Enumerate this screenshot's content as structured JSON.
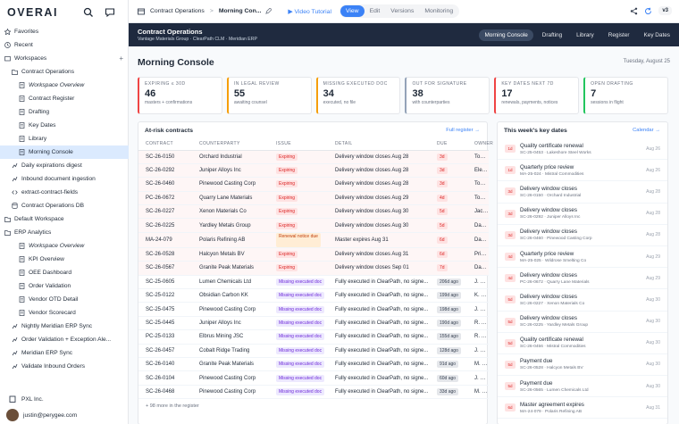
{
  "sidebar": {
    "logo": "OVERAI",
    "items": [
      {
        "label": "Favorites",
        "level": 0,
        "icon": "star-icon",
        "italic": false,
        "sel": false
      },
      {
        "label": "Recent",
        "level": 0,
        "icon": "clock-icon",
        "italic": false,
        "sel": false
      },
      {
        "label": "Workspaces",
        "level": 0,
        "icon": "workspace-icon",
        "italic": false,
        "sel": false,
        "plus": "+"
      },
      {
        "label": "Contract Operations",
        "level": 1,
        "icon": "folder-icon",
        "italic": false,
        "sel": false
      },
      {
        "label": "Workspace Overview",
        "level": 2,
        "icon": "doc-icon",
        "italic": true,
        "sel": false
      },
      {
        "label": "Contract Register",
        "level": 2,
        "icon": "doc-icon",
        "italic": false,
        "sel": false
      },
      {
        "label": "Drafting",
        "level": 2,
        "icon": "doc-icon",
        "italic": false,
        "sel": false
      },
      {
        "label": "Key Dates",
        "level": 2,
        "icon": "doc-icon",
        "italic": false,
        "sel": false
      },
      {
        "label": "Library",
        "level": 2,
        "icon": "doc-icon",
        "italic": false,
        "sel": false
      },
      {
        "label": "Morning Console",
        "level": 2,
        "icon": "doc-icon",
        "italic": false,
        "sel": true
      },
      {
        "label": "Daily expirations digest",
        "level": 1,
        "icon": "flow-icon",
        "italic": false,
        "sel": false
      },
      {
        "label": "Inbound document ingestion",
        "level": 1,
        "icon": "flow-icon",
        "italic": false,
        "sel": false
      },
      {
        "label": "extract-contract-fields",
        "level": 1,
        "icon": "code-icon",
        "italic": false,
        "sel": false
      },
      {
        "label": "Contract Operations DB",
        "level": 1,
        "icon": "db-icon",
        "italic": false,
        "sel": false
      },
      {
        "label": "Default Workspace",
        "level": 0,
        "icon": "folder-icon",
        "italic": false,
        "sel": false
      },
      {
        "label": "ERP Analytics",
        "level": 0,
        "icon": "folder-icon",
        "italic": false,
        "sel": false
      },
      {
        "label": "Workspace Overview",
        "level": 2,
        "icon": "doc-icon",
        "italic": true,
        "sel": false
      },
      {
        "label": "KPI Overview",
        "level": 2,
        "icon": "doc-icon",
        "italic": false,
        "sel": false
      },
      {
        "label": "OEE Dashboard",
        "level": 2,
        "icon": "doc-icon",
        "italic": false,
        "sel": false
      },
      {
        "label": "Order Validation",
        "level": 2,
        "icon": "doc-icon",
        "italic": false,
        "sel": false
      },
      {
        "label": "Vendor OTD Detail",
        "level": 2,
        "icon": "doc-icon",
        "italic": false,
        "sel": false
      },
      {
        "label": "Vendor Scorecard",
        "level": 2,
        "icon": "doc-icon",
        "italic": false,
        "sel": false
      },
      {
        "label": "Nightly Meridian ERP Sync",
        "level": 1,
        "icon": "flow-icon",
        "italic": false,
        "sel": false
      },
      {
        "label": "Order Validation + Exception Ale...",
        "level": 1,
        "icon": "flow-icon",
        "italic": false,
        "sel": false
      },
      {
        "label": "Meridian ERP Sync",
        "level": 1,
        "icon": "flow-icon",
        "italic": false,
        "sel": false
      },
      {
        "label": "Validate Inbound Orders",
        "level": 1,
        "icon": "flow-icon",
        "italic": false,
        "sel": false
      }
    ],
    "org": "PXL Inc.",
    "user": "justin@perygee.com"
  },
  "topbar": {
    "crumb1": "Contract Operations",
    "sep": ">",
    "crumb2": "Morning Con...",
    "tabs": [
      "Video Tutorial",
      "View",
      "Edit",
      "Versions",
      "Monitoring"
    ],
    "version": "v3"
  },
  "band": {
    "title": "Contract Operations",
    "subtitle": "Vantage Materials Group · ClearPath CLM · Meridian ERP",
    "nav": [
      "Morning Console",
      "Drafting",
      "Library",
      "Register",
      "Key Dates"
    ]
  },
  "page": {
    "title": "Morning Console",
    "date": "Tuesday, August 25"
  },
  "kpis": [
    {
      "label": "Expiring ≤ 30d",
      "value": "46",
      "sub": "masters + confirmations",
      "color": "#ef4444"
    },
    {
      "label": "In legal review",
      "value": "55",
      "sub": "awaiting counsel",
      "color": "#f59e0b"
    },
    {
      "label": "Missing executed doc",
      "value": "34",
      "sub": "executed, no file",
      "color": "#f59e0b"
    },
    {
      "label": "Out for signature",
      "value": "38",
      "sub": "with counterparties",
      "color": "#94a3b8"
    },
    {
      "label": "Key dates next 7d",
      "value": "17",
      "sub": "renewals, payments, notices",
      "color": "#ef4444"
    },
    {
      "label": "Open drafting",
      "value": "7",
      "sub": "sessions in flight",
      "color": "#22c55e"
    }
  ],
  "contracts": {
    "title": "At-risk contracts",
    "link": "Full register →",
    "headers": [
      "CONTRACT",
      "COUNTERPARTY",
      "ISSUE",
      "DETAIL",
      "DUE",
      "OWNER"
    ],
    "rows": [
      [
        "SC-26-0150",
        "Orchard Industrial",
        "Expiring",
        "Delivery window closes Aug 28",
        "3d",
        "Tomas Okafor",
        "red",
        "red",
        true
      ],
      [
        "SC-26-0292",
        "Juniper Alloys Inc",
        "Expiring",
        "Delivery window closes Aug 28",
        "3d",
        "Elena Vasquez",
        "red",
        "red",
        true
      ],
      [
        "SC-26-0460",
        "Pinewood Casting Corp",
        "Expiring",
        "Delivery window closes Aug 28",
        "3d",
        "Tomas Okafor",
        "red",
        "red",
        true
      ],
      [
        "PC-26-0672",
        "Quarry Lane Materials",
        "Expiring",
        "Delivery window closes Aug 29",
        "4d",
        "Tomas Okafor",
        "red",
        "red",
        true
      ],
      [
        "SC-26-0227",
        "Xenon Materials Co",
        "Expiring",
        "Delivery window closes Aug 30",
        "5d",
        "Jack Morrow",
        "red",
        "red",
        true
      ],
      [
        "SC-26-0225",
        "Yardley Metals Group",
        "Expiring",
        "Delivery window closes Aug 30",
        "5d",
        "Dana Whitfield",
        "red",
        "red",
        true
      ],
      [
        "MA-24-079",
        "Polaris Refining AB",
        "Renewal notice due",
        "Master expires Aug 31",
        "6d",
        "Dana Whitfield",
        "org",
        "red",
        true
      ],
      [
        "SC-26-0528",
        "Halcyon Metals BV",
        "Expiring",
        "Delivery window closes Aug 31",
        "6d",
        "Priya Sharma",
        "red",
        "red",
        true
      ],
      [
        "SC-26-0567",
        "Granite Peak Materials",
        "Expiring",
        "Delivery window closes Sep 01",
        "7d",
        "Dana Whitfield",
        "red",
        "red",
        true
      ],
      [
        "SC-25-0605",
        "Lumen Chemicals Ltd",
        "Missing executed doc",
        "Fully executed in ClearPath, no signe...",
        "206d ago",
        "J. Barrett",
        "pur",
        "gray",
        false
      ],
      [
        "SC-25-0122",
        "Obsidian Carbon KK",
        "Missing executed doc",
        "Fully executed in ClearPath, no signe...",
        "199d ago",
        "K. Osei",
        "pur",
        "gray",
        false
      ],
      [
        "SC-25-0475",
        "Pinewood Casting Corp",
        "Missing executed doc",
        "Fully executed in ClearPath, no signe...",
        "198d ago",
        "J. Barrett",
        "pur",
        "gray",
        false
      ],
      [
        "SC-25-0445",
        "Juniper Alloys Inc",
        "Missing executed doc",
        "Fully executed in ClearPath, no signe...",
        "190d ago",
        "R. Ellison",
        "pur",
        "gray",
        false
      ],
      [
        "PC-25-0133",
        "Elbrus Mining JSC",
        "Missing executed doc",
        "Fully executed in ClearPath, no signe...",
        "155d ago",
        "R. Ellison",
        "pur",
        "gray",
        false
      ],
      [
        "SC-26-0457",
        "Cobalt Ridge Trading",
        "Missing executed doc",
        "Fully executed in ClearPath, no signe...",
        "128d ago",
        "J. Barrett",
        "pur",
        "gray",
        false
      ],
      [
        "SC-26-0140",
        "Granite Peak Materials",
        "Missing executed doc",
        "Fully executed in ClearPath, no signe...",
        "91d ago",
        "M. Fontaine",
        "pur",
        "gray",
        false
      ],
      [
        "SC-26-0104",
        "Pinewood Casting Corp",
        "Missing executed doc",
        "Fully executed in ClearPath, no signe...",
        "60d ago",
        "J. Barrett",
        "pur",
        "gray",
        false
      ],
      [
        "SC-26-0468",
        "Pinewood Casting Corp",
        "Missing executed doc",
        "Fully executed in ClearPath, no signe...",
        "33d ago",
        "M. Fontaine",
        "pur",
        "gray",
        false
      ]
    ],
    "more": "+ 98 more in the register"
  },
  "keydates": {
    "title": "This week's key dates",
    "link": "Calendar →",
    "items": [
      {
        "d": "1d",
        "t": "Quality certificate renewal",
        "s": "SC-25-0453 · Lakeshore Steel Works",
        "r": "Aug 26"
      },
      {
        "d": "1d",
        "t": "Quarterly price review",
        "s": "MA-25-024 · Mistral Commodities",
        "r": "Aug 26"
      },
      {
        "d": "3d",
        "t": "Delivery window closes",
        "s": "SC-26-0150 · Orchard Industrial",
        "r": "Aug 28"
      },
      {
        "d": "3d",
        "t": "Delivery window closes",
        "s": "SC-26-0292 · Juniper Alloys Inc",
        "r": "Aug 28"
      },
      {
        "d": "3d",
        "t": "Delivery window closes",
        "s": "SC-26-0460 · Pinewood Casting Corp",
        "r": "Aug 28"
      },
      {
        "d": "4d",
        "t": "Quarterly price review",
        "s": "MA-25-025 · Wildrose Smelting Co",
        "r": "Aug 29"
      },
      {
        "d": "4d",
        "t": "Delivery window closes",
        "s": "PC-26-0672 · Quarry Lane Materials",
        "r": "Aug 29"
      },
      {
        "d": "5d",
        "t": "Delivery window closes",
        "s": "SC-26-0227 · Xenon Materials Co",
        "r": "Aug 30"
      },
      {
        "d": "5d",
        "t": "Delivery window closes",
        "s": "SC-26-0225 · Yardley Metals Group",
        "r": "Aug 30"
      },
      {
        "d": "5d",
        "t": "Quality certificate renewal",
        "s": "SC-26-0456 · Mistral Commodities",
        "r": "Aug 30"
      },
      {
        "d": "5d",
        "t": "Payment due",
        "s": "SC-26-0528 · Halcyon Metals BV",
        "r": "Aug 30"
      },
      {
        "d": "5d",
        "t": "Payment due",
        "s": "SC-26-0565 · Lumen Chemicals Ltd",
        "r": "Aug 30"
      },
      {
        "d": "6d",
        "t": "Master agreement expires",
        "s": "MA-24-079 · Polaris Refining AB",
        "r": "Aug 31"
      }
    ]
  }
}
